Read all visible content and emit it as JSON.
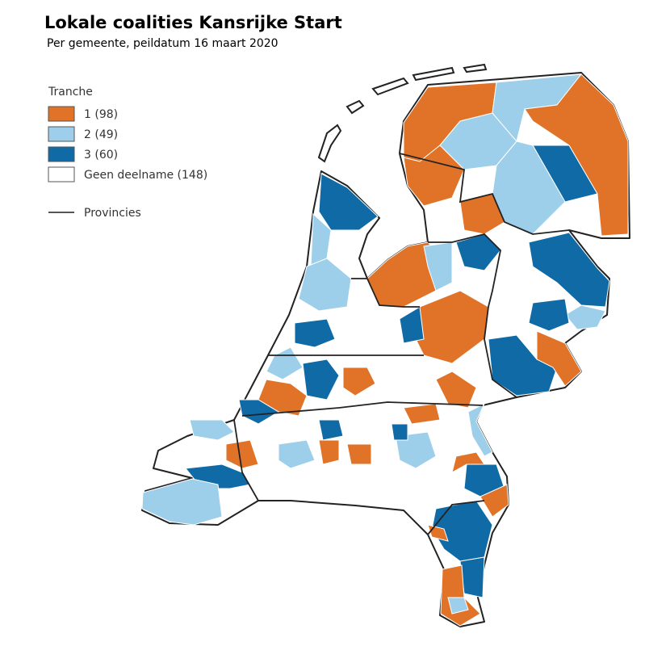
{
  "header": {
    "title": "Lokale coalities Kansrijke Start",
    "subtitle": "Per gemeente, peildatum 16 maart 2020"
  },
  "legend": {
    "title": "Tranche",
    "items": [
      {
        "label": "1 (98)",
        "color": "#e07328"
      },
      {
        "label": "2 (49)",
        "color": "#9dcfeb"
      },
      {
        "label": "3 (60)",
        "color": "#0f6aa6"
      },
      {
        "label": "Geen deelname (148)",
        "color": "#ffffff"
      }
    ],
    "line_label": "Provincies"
  }
}
